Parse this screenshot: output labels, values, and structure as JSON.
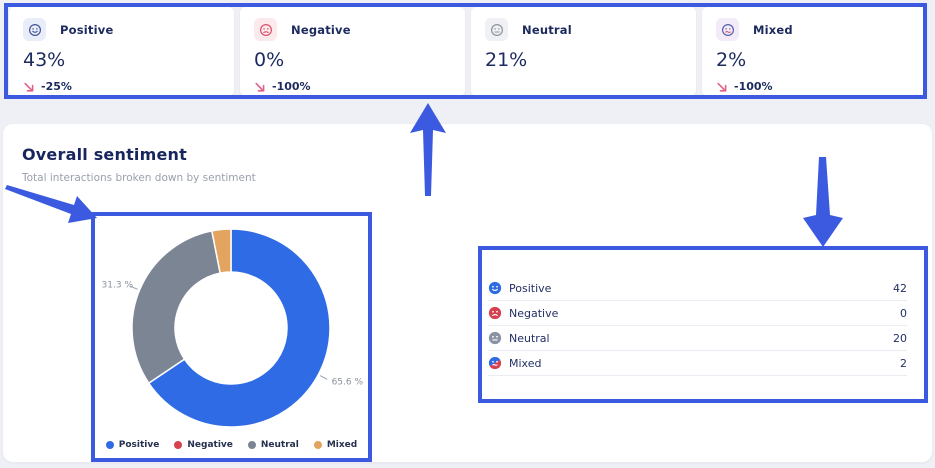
{
  "cards": [
    {
      "label": "Positive",
      "value": "43%",
      "change": "-25%"
    },
    {
      "label": "Negative",
      "value": "0%",
      "change": "-100%"
    },
    {
      "label": "Neutral",
      "value": "21%"
    },
    {
      "label": "Mixed",
      "value": "2%",
      "change": "-100%"
    }
  ],
  "section": {
    "title": "Overall sentiment",
    "subtitle": "Total interactions broken down by sentiment"
  },
  "chart_data": {
    "type": "pie",
    "donut": true,
    "title": "Overall sentiment",
    "slices": [
      {
        "name": "Positive",
        "pct": 65.6,
        "count": 42,
        "color": "#2e6be4",
        "label": "65.6 %"
      },
      {
        "name": "Neutral",
        "pct": 31.3,
        "count": 20,
        "color": "#7c8594",
        "label": "31.3 %"
      },
      {
        "name": "Mixed",
        "pct": 3.1,
        "count": 2,
        "color": "#e3a45f",
        "label": ""
      },
      {
        "name": "Negative",
        "pct": 0,
        "count": 0,
        "color": "#d6404f",
        "label": ""
      }
    ],
    "legend": [
      {
        "label": "Positive",
        "color": "#2e6be4"
      },
      {
        "label": "Negative",
        "color": "#d6404f"
      },
      {
        "label": "Neutral",
        "color": "#7c8594"
      },
      {
        "label": "Mixed",
        "color": "#e3a45f"
      }
    ],
    "legend_position": "bottom"
  },
  "table": {
    "rows": [
      {
        "label": "Positive",
        "value": "42"
      },
      {
        "label": "Negative",
        "value": "0"
      },
      {
        "label": "Neutral",
        "value": "20"
      },
      {
        "label": "Mixed",
        "value": "2"
      }
    ]
  },
  "annotation": {
    "color": "#3b5ae0"
  }
}
